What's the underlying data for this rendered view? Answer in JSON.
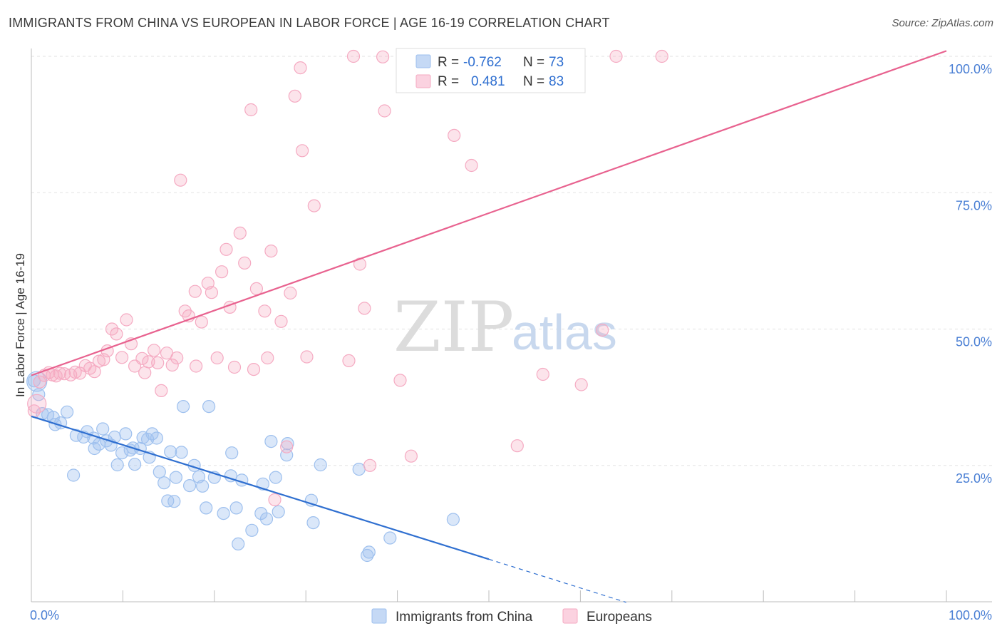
{
  "header": {
    "title": "IMMIGRANTS FROM CHINA VS EUROPEAN IN LABOR FORCE | AGE 16-19 CORRELATION CHART",
    "source": "Source: ZipAtlas.com"
  },
  "watermark": {
    "part1": "ZIP",
    "part2": "atlas"
  },
  "legend_box": {
    "rows": [
      {
        "r_label": "R =",
        "r_value": "-0.762",
        "n_label": "N =",
        "n_value": "73",
        "color": "#9ec0ee"
      },
      {
        "r_label": "R =",
        "r_value": "0.481",
        "n_label": "N =",
        "n_value": "83",
        "color": "#f5aac2"
      }
    ]
  },
  "chart_data": {
    "type": "scatter",
    "title": "IMMIGRANTS FROM CHINA VS EUROPEAN IN LABOR FORCE | AGE 16-19 CORRELATION CHART",
    "xlabel": "",
    "ylabel": "In Labor Force | Age 16-19",
    "xlim": [
      0,
      100
    ],
    "ylim": [
      0,
      100
    ],
    "x_tick_labels": [
      "0.0%",
      "100.0%"
    ],
    "y_ticks": [
      25,
      50,
      75,
      100
    ],
    "y_tick_labels": [
      "25.0%",
      "50.0%",
      "75.0%",
      "100.0%"
    ],
    "grid": true,
    "legend_position": "bottom",
    "series": [
      {
        "name": "Immigrants from China",
        "color": "#9ec0ee",
        "line_color": "#2f6fd0",
        "trend": {
          "x0": 0,
          "y0": 34.0,
          "x1": 50,
          "y1": 7.8,
          "dash_to_x": 65,
          "dash_to_y": -0.1
        },
        "points": [
          [
            0.3,
            40.5
          ],
          [
            0.8,
            38.0
          ],
          [
            1.2,
            34.5
          ],
          [
            1.8,
            34.3
          ],
          [
            2.4,
            33.8
          ],
          [
            2.6,
            32.5
          ],
          [
            3.2,
            32.8
          ],
          [
            3.9,
            34.8
          ],
          [
            4.6,
            23.2
          ],
          [
            4.9,
            30.5
          ],
          [
            5.7,
            30.2
          ],
          [
            6.1,
            31.2
          ],
          [
            6.8,
            30.0
          ],
          [
            6.9,
            28.1
          ],
          [
            7.4,
            28.9
          ],
          [
            7.8,
            31.7
          ],
          [
            8.2,
            29.5
          ],
          [
            8.7,
            28.7
          ],
          [
            9.1,
            30.2
          ],
          [
            9.4,
            25.1
          ],
          [
            9.9,
            27.3
          ],
          [
            10.3,
            30.8
          ],
          [
            10.8,
            27.8
          ],
          [
            11.1,
            28.2
          ],
          [
            11.3,
            25.2
          ],
          [
            11.9,
            28.1
          ],
          [
            12.2,
            30.1
          ],
          [
            12.7,
            29.8
          ],
          [
            12.9,
            26.5
          ],
          [
            13.2,
            30.8
          ],
          [
            13.7,
            30.0
          ],
          [
            14.0,
            23.8
          ],
          [
            14.5,
            21.8
          ],
          [
            14.9,
            18.5
          ],
          [
            15.2,
            27.5
          ],
          [
            15.6,
            18.4
          ],
          [
            15.8,
            22.8
          ],
          [
            16.4,
            27.4
          ],
          [
            16.6,
            35.8
          ],
          [
            17.3,
            21.3
          ],
          [
            17.8,
            25.0
          ],
          [
            18.3,
            22.9
          ],
          [
            18.7,
            21.2
          ],
          [
            19.1,
            17.2
          ],
          [
            19.4,
            35.8
          ],
          [
            20.0,
            22.8
          ],
          [
            21.0,
            16.2
          ],
          [
            21.8,
            23.1
          ],
          [
            21.9,
            27.3
          ],
          [
            22.4,
            17.2
          ],
          [
            22.6,
            10.6
          ],
          [
            23.0,
            22.3
          ],
          [
            24.1,
            13.1
          ],
          [
            25.1,
            16.2
          ],
          [
            25.3,
            21.6
          ],
          [
            25.7,
            15.2
          ],
          [
            26.7,
            22.8
          ],
          [
            27.0,
            16.5
          ],
          [
            26.2,
            29.4
          ],
          [
            28.0,
            29.0
          ],
          [
            27.9,
            26.9
          ],
          [
            30.6,
            18.6
          ],
          [
            30.8,
            14.5
          ],
          [
            31.6,
            25.1
          ],
          [
            35.8,
            24.3
          ],
          [
            36.7,
            8.5
          ],
          [
            36.9,
            9.1
          ],
          [
            39.2,
            11.7
          ],
          [
            46.1,
            15.1
          ]
        ]
      },
      {
        "name": "Europeans",
        "color": "#f5aac2",
        "line_color": "#e8628f",
        "trend": {
          "x0": 0,
          "y0": 41.5,
          "x1": 100,
          "y1": 101.0
        },
        "points": [
          [
            0.3,
            35.0
          ],
          [
            0.9,
            40.3
          ],
          [
            1.4,
            41.5
          ],
          [
            1.9,
            42.0
          ],
          [
            2.3,
            41.6
          ],
          [
            2.7,
            41.4
          ],
          [
            3.1,
            41.9
          ],
          [
            3.6,
            41.8
          ],
          [
            4.3,
            41.6
          ],
          [
            4.8,
            42.1
          ],
          [
            5.3,
            41.9
          ],
          [
            5.9,
            43.3
          ],
          [
            6.4,
            42.8
          ],
          [
            6.9,
            42.2
          ],
          [
            7.4,
            44.1
          ],
          [
            7.9,
            44.4
          ],
          [
            8.3,
            46.0
          ],
          [
            8.8,
            50.0
          ],
          [
            9.3,
            49.1
          ],
          [
            9.9,
            44.8
          ],
          [
            10.4,
            51.7
          ],
          [
            10.9,
            47.3
          ],
          [
            11.3,
            43.2
          ],
          [
            12.1,
            44.6
          ],
          [
            12.4,
            42.0
          ],
          [
            12.8,
            44.0
          ],
          [
            13.4,
            46.1
          ],
          [
            13.8,
            43.8
          ],
          [
            14.2,
            38.7
          ],
          [
            14.8,
            45.6
          ],
          [
            15.4,
            43.4
          ],
          [
            15.9,
            44.7
          ],
          [
            16.3,
            77.3
          ],
          [
            16.8,
            53.3
          ],
          [
            17.2,
            52.4
          ],
          [
            17.9,
            56.9
          ],
          [
            18.0,
            43.2
          ],
          [
            18.6,
            51.3
          ],
          [
            19.3,
            58.4
          ],
          [
            19.7,
            56.7
          ],
          [
            20.3,
            44.7
          ],
          [
            20.8,
            60.5
          ],
          [
            21.3,
            64.6
          ],
          [
            21.7,
            54.0
          ],
          [
            22.2,
            43.0
          ],
          [
            22.8,
            67.6
          ],
          [
            23.3,
            62.1
          ],
          [
            24.0,
            90.2
          ],
          [
            24.3,
            42.6
          ],
          [
            24.6,
            57.4
          ],
          [
            25.5,
            53.3
          ],
          [
            25.8,
            44.7
          ],
          [
            26.2,
            64.3
          ],
          [
            26.6,
            18.7
          ],
          [
            27.3,
            51.4
          ],
          [
            27.9,
            28.4
          ],
          [
            28.3,
            56.6
          ],
          [
            28.8,
            92.7
          ],
          [
            29.4,
            97.9
          ],
          [
            29.6,
            82.7
          ],
          [
            30.1,
            44.9
          ],
          [
            30.9,
            72.6
          ],
          [
            34.7,
            44.2
          ],
          [
            35.2,
            100.0
          ],
          [
            35.9,
            61.9
          ],
          [
            36.4,
            53.8
          ],
          [
            37.0,
            25.0
          ],
          [
            38.4,
            99.9
          ],
          [
            38.6,
            90.0
          ],
          [
            40.3,
            40.6
          ],
          [
            41.5,
            26.7
          ],
          [
            46.2,
            85.5
          ],
          [
            48.1,
            80.0
          ],
          [
            53.1,
            28.6
          ],
          [
            55.9,
            41.7
          ],
          [
            60.1,
            39.8
          ],
          [
            62.4,
            49.8
          ],
          [
            63.9,
            100.0
          ],
          [
            68.9,
            100.0
          ]
        ]
      }
    ]
  }
}
